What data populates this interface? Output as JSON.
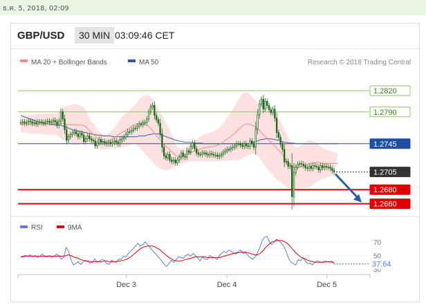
{
  "timestamp": "ธ.ค. 5, 2018, 02:09",
  "header": {
    "pair": "GBP/USD",
    "timeframe": "30 MIN",
    "time": "03:09:46 CET"
  },
  "legend": {
    "ma20": "MA 20 + Bollinger Bands",
    "ma50": "MA 50",
    "credit": "Research © 2018 Trading Central"
  },
  "rsi_legend": {
    "rsi": "RSI",
    "ma9": "9MA"
  },
  "colors": {
    "ma20": "#f28b82",
    "ma50": "#2f5b9e",
    "band": "#fde0e0",
    "support": "#e00000",
    "resistance": "#8dc26f",
    "pivot": "#1f4ea3",
    "candle": "#1a6b1a",
    "arrow": "#2a5da8"
  },
  "chart_data": [
    {
      "type": "candlestick",
      "title": "GBP/USD",
      "x_ticks": [
        "Dec 3",
        "Dec 4",
        "Dec 5"
      ],
      "ylim": [
        1.2645,
        1.2825
      ],
      "levels": [
        {
          "label": "1.2820",
          "value": 1.282,
          "kind": "resistance"
        },
        {
          "label": "1.2790",
          "value": 1.279,
          "kind": "resistance"
        },
        {
          "label": "1.2745",
          "value": 1.2745,
          "kind": "pivot"
        },
        {
          "label": "1.2705",
          "value": 1.2705,
          "kind": "last"
        },
        {
          "label": "1.2680",
          "value": 1.268,
          "kind": "support"
        },
        {
          "label": "1.2660",
          "value": 1.266,
          "kind": "support"
        }
      ],
      "close": [
        1.2775,
        1.2776,
        1.2774,
        1.2775,
        1.2777,
        1.2776,
        1.2774,
        1.2775,
        1.2773,
        1.2776,
        1.2776,
        1.2775,
        1.2774,
        1.2776,
        1.2777,
        1.2775,
        1.2776,
        1.2778,
        1.2776,
        1.2771,
        1.2777,
        1.279,
        1.278,
        1.2765,
        1.275,
        1.2755,
        1.2758,
        1.276,
        1.2762,
        1.2759,
        1.2755,
        1.276,
        1.2757,
        1.2748,
        1.2752,
        1.2756,
        1.2752,
        1.275,
        1.2749,
        1.2742,
        1.2746,
        1.2751,
        1.2747,
        1.2748,
        1.2746,
        1.2745,
        1.2747,
        1.2745,
        1.2747,
        1.2749,
        1.2747,
        1.2745,
        1.275,
        1.2752,
        1.2754,
        1.2758,
        1.2762,
        1.2762,
        1.2764,
        1.2767,
        1.2767,
        1.277,
        1.2773,
        1.2772,
        1.2775,
        1.2775,
        1.278,
        1.279,
        1.2797,
        1.2799,
        1.2785,
        1.2779,
        1.2774,
        1.2759,
        1.274,
        1.2728,
        1.2725,
        1.273,
        1.2722,
        1.272,
        1.2722,
        1.2718,
        1.2722,
        1.2726,
        1.2732,
        1.2727,
        1.2726,
        1.2735,
        1.2733,
        1.2741,
        1.2746,
        1.2738,
        1.2732,
        1.273,
        1.273,
        1.2732,
        1.2732,
        1.273,
        1.2729,
        1.2731,
        1.273,
        1.2729,
        1.2729,
        1.2727,
        1.2728,
        1.273,
        1.2733,
        1.2735,
        1.2737,
        1.2737,
        1.2739,
        1.274,
        1.2742,
        1.2745,
        1.2745,
        1.2743,
        1.2741,
        1.2745,
        1.2742,
        1.2741,
        1.2749,
        1.2745,
        1.274,
        1.2766,
        1.2786,
        1.2801,
        1.2808,
        1.2794,
        1.2805,
        1.2799,
        1.2793,
        1.2789,
        1.2794,
        1.2781,
        1.2761,
        1.2754,
        1.2744,
        1.2737,
        1.2719,
        1.272,
        1.2713,
        1.2714,
        1.267,
        1.2704,
        1.2712,
        1.2716,
        1.2717,
        1.2716,
        1.2714,
        1.2711,
        1.271,
        1.2713,
        1.271,
        1.2714,
        1.2713,
        1.2712,
        1.2708,
        1.2714,
        1.2711,
        1.2713,
        1.2712,
        1.2712,
        1.271,
        1.2707,
        1.2705
      ],
      "ma20_upper": [
        1.2783,
        1.2784,
        1.2785,
        1.2785,
        1.2785,
        1.2786,
        1.2786,
        1.2786,
        1.2787,
        1.2787,
        1.2787,
        1.2787,
        1.2788,
        1.2788,
        1.2788,
        1.2788,
        1.2788,
        1.2788,
        1.2788,
        1.2788,
        1.279,
        1.2794,
        1.2796,
        1.2797,
        1.2798,
        1.2799,
        1.28,
        1.28,
        1.2801,
        1.2801,
        1.28,
        1.2799,
        1.2798,
        1.2796,
        1.2793,
        1.2788,
        1.2781,
        1.2776,
        1.2774,
        1.277,
        1.2766,
        1.2762,
        1.276,
        1.2759,
        1.2758,
        1.2758,
        1.276,
        1.2762,
        1.2765,
        1.2768,
        1.2772,
        1.2776,
        1.278,
        1.2783,
        1.2785,
        1.2787,
        1.2789,
        1.2792,
        1.2795,
        1.2798,
        1.2801,
        1.2804,
        1.2807,
        1.281,
        1.2812,
        1.2813,
        1.2814,
        1.2813,
        1.2811,
        1.2808,
        1.2804,
        1.28,
        1.2795,
        1.279,
        1.2785,
        1.278,
        1.2775,
        1.277,
        1.2764,
        1.2758,
        1.2752,
        1.2745,
        1.274,
        1.2738,
        1.2737,
        1.2738,
        1.2739,
        1.2741,
        1.2743,
        1.2745,
        1.2747,
        1.2749,
        1.2751,
        1.2753,
        1.2755,
        1.2757,
        1.2758,
        1.2759,
        1.276,
        1.2761,
        1.2762,
        1.2763,
        1.2764,
        1.2766,
        1.2768,
        1.2771,
        1.2774,
        1.2778,
        1.2782,
        1.2786,
        1.279,
        1.2794,
        1.2798,
        1.2803,
        1.2808,
        1.2812,
        1.2816,
        1.2818,
        1.2818,
        1.2817,
        1.2815,
        1.2812,
        1.2809,
        1.2806,
        1.2804,
        1.2802,
        1.28,
        1.2798,
        1.2797,
        1.2795,
        1.2793,
        1.2791,
        1.2789,
        1.2786,
        1.2783,
        1.278,
        1.2776,
        1.2771,
        1.2765,
        1.2759,
        1.2754,
        1.2749,
        1.2745,
        1.2742,
        1.274,
        1.274,
        1.2741,
        1.2743,
        1.2745,
        1.2747,
        1.2749,
        1.275,
        1.275,
        1.2749,
        1.2748,
        1.2746,
        1.2744,
        1.2741,
        1.2739,
        1.2738,
        1.2737,
        1.2736,
        1.2735,
        1.2734,
        1.2733,
        1.2732,
        1.2731
      ],
      "ma20_lower": [
        1.2762,
        1.2761,
        1.2761,
        1.276,
        1.276,
        1.2759,
        1.2759,
        1.2759,
        1.2759,
        1.2759,
        1.2759,
        1.2759,
        1.2758,
        1.2758,
        1.2758,
        1.2758,
        1.2758,
        1.2758,
        1.2758,
        1.2757,
        1.2755,
        1.2753,
        1.2751,
        1.2749,
        1.2747,
        1.2745,
        1.2744,
        1.2743,
        1.2743,
        1.2743,
        1.2743,
        1.2744,
        1.2745,
        1.2745,
        1.2745,
        1.2745,
        1.2745,
        1.2744,
        1.2743,
        1.2741,
        1.2739,
        1.2738,
        1.2737,
        1.2737,
        1.2737,
        1.2738,
        1.2738,
        1.2738,
        1.2739,
        1.2739,
        1.2739,
        1.2739,
        1.2739,
        1.2739,
        1.274,
        1.2741,
        1.2742,
        1.2743,
        1.2744,
        1.2745,
        1.2744,
        1.2742,
        1.274,
        1.2737,
        1.2734,
        1.2731,
        1.2728,
        1.2725,
        1.2722,
        1.2719,
        1.2716,
        1.2713,
        1.2711,
        1.271,
        1.2709,
        1.2708,
        1.2708,
        1.2708,
        1.2709,
        1.271,
        1.2711,
        1.2713,
        1.2715,
        1.2716,
        1.2717,
        1.2718,
        1.2719,
        1.2719,
        1.272,
        1.272,
        1.272,
        1.272,
        1.272,
        1.272,
        1.272,
        1.272,
        1.272,
        1.272,
        1.272,
        1.272,
        1.272,
        1.272,
        1.272,
        1.272,
        1.272,
        1.272,
        1.2721,
        1.2721,
        1.2721,
        1.2721,
        1.2721,
        1.2721,
        1.2721,
        1.2722,
        1.2722,
        1.2723,
        1.2724,
        1.2726,
        1.2728,
        1.2729,
        1.273,
        1.2731,
        1.2731,
        1.273,
        1.2728,
        1.2725,
        1.2721,
        1.2717,
        1.2713,
        1.271,
        1.2706,
        1.2703,
        1.27,
        1.2697,
        1.2694,
        1.2692,
        1.269,
        1.2688,
        1.2686,
        1.2684,
        1.2683,
        1.2682,
        1.2681,
        1.2681,
        1.2681,
        1.2682,
        1.2682,
        1.2682,
        1.2682,
        1.2682,
        1.2683,
        1.2684,
        1.2685,
        1.2687,
        1.2689,
        1.2691,
        1.2693,
        1.2694,
        1.2695,
        1.2696,
        1.2697,
        1.2698,
        1.2699,
        1.27,
        1.2701,
        1.2702,
        1.2703
      ],
      "ma50": [
        1.2785,
        1.2784,
        1.2783,
        1.2782,
        1.2781,
        1.278,
        1.2779,
        1.2778,
        1.2777,
        1.2776,
        1.2775,
        1.2775,
        1.2774,
        1.2774,
        1.2773,
        1.2773,
        1.2772,
        1.2772,
        1.2771,
        1.2771,
        1.2771,
        1.2771,
        1.277,
        1.2769,
        1.2768,
        1.2767,
        1.2766,
        1.2765,
        1.2764,
        1.2764,
        1.2763,
        1.2762,
        1.2762,
        1.2761,
        1.2761,
        1.276,
        1.2759,
        1.2759,
        1.2758,
        1.2758,
        1.2757,
        1.2757,
        1.2757,
        1.2756,
        1.2756,
        1.2756,
        1.2756,
        1.2756,
        1.2755,
        1.2755,
        1.2755,
        1.2755,
        1.2755,
        1.2755,
        1.2755,
        1.2755,
        1.2755,
        1.2755,
        1.2755,
        1.2755,
        1.2755,
        1.2755,
        1.2756,
        1.2756,
        1.2756,
        1.2756,
        1.2757,
        1.2758,
        1.2758,
        1.2759,
        1.2759,
        1.2759,
        1.2759,
        1.2758,
        1.2757,
        1.2756,
        1.2755,
        1.2754,
        1.2753,
        1.2752,
        1.2751,
        1.275,
        1.2749,
        1.2749,
        1.2748,
        1.2748,
        1.2747,
        1.2747,
        1.2747,
        1.2747,
        1.2746,
        1.2746,
        1.2746,
        1.2746,
        1.2746,
        1.2746,
        1.2745,
        1.2745,
        1.2745,
        1.2745,
        1.2745,
        1.2745,
        1.2745,
        1.2745,
        1.2745,
        1.2745,
        1.2745,
        1.2745,
        1.2745,
        1.2745,
        1.2745,
        1.2745,
        1.2745,
        1.2745,
        1.2745,
        1.2745,
        1.2745,
        1.2745,
        1.2745,
        1.2745,
        1.2745,
        1.2746,
        1.2747,
        1.2748,
        1.2749,
        1.275,
        1.2751,
        1.2751,
        1.2752,
        1.2752,
        1.2752,
        1.2752,
        1.2751,
        1.2751,
        1.275,
        1.275,
        1.2749,
        1.2748,
        1.2747,
        1.2747,
        1.2746,
        1.2746,
        1.2746,
        1.2746,
        1.2745,
        1.2745,
        1.2745,
        1.2745,
        1.2745,
        1.2745,
        1.2745,
        1.2745,
        1.2745,
        1.2745,
        1.2745,
        1.2745,
        1.2745,
        1.2745,
        1.2745,
        1.2745,
        1.2745,
        1.2745,
        1.2745,
        1.2745,
        1.2745,
        1.2745,
        1.2745
      ]
    },
    {
      "type": "line",
      "title": "RSI",
      "x_ticks": [
        "Dec 3",
        "Dec 4",
        "Dec 5"
      ],
      "y_ticks": [
        30,
        50,
        70
      ],
      "ylim": [
        25,
        80
      ],
      "last_label": "37.64",
      "series": [
        {
          "name": "RSI",
          "values": [
            48,
            49,
            50,
            49,
            51,
            48,
            50,
            47,
            49,
            52,
            49,
            48,
            50,
            47,
            49,
            52,
            50,
            45,
            47,
            62,
            56,
            44,
            36,
            38,
            41,
            37,
            40,
            43,
            41,
            39,
            40,
            45,
            40,
            42,
            44,
            43,
            38,
            37,
            43,
            41,
            40,
            45,
            44,
            49,
            48,
            53,
            57,
            60,
            64,
            68,
            64,
            66,
            70,
            66,
            62,
            58,
            54,
            50,
            46,
            42,
            37,
            34,
            38,
            43,
            40,
            44,
            48,
            47,
            46,
            50,
            52,
            49,
            53,
            50,
            46,
            42,
            48,
            45,
            44,
            50,
            48,
            47,
            44,
            50,
            53,
            56,
            54,
            58,
            56,
            54,
            52,
            56,
            58,
            53,
            54,
            50,
            47,
            44,
            48,
            54,
            62,
            72,
            77,
            78,
            70,
            66,
            70,
            74,
            72,
            68,
            64,
            56,
            46,
            40,
            38,
            36,
            44,
            42,
            47,
            42,
            38,
            39,
            36,
            40,
            42,
            41,
            40,
            42,
            41,
            40,
            42,
            38
          ]
        },
        {
          "name": "9MA",
          "values": [
            48,
            48,
            49,
            49,
            49,
            49,
            49,
            49,
            49,
            49,
            49,
            49,
            49,
            49,
            49,
            49,
            49,
            49,
            49,
            50,
            51,
            50,
            48,
            47,
            46,
            44,
            43,
            42,
            42,
            41,
            41,
            41,
            41,
            41,
            41,
            42,
            42,
            41,
            41,
            41,
            41,
            42,
            42,
            43,
            44,
            46,
            48,
            51,
            54,
            57,
            60,
            62,
            63,
            64,
            64,
            64,
            63,
            61,
            59,
            56,
            53,
            50,
            47,
            45,
            43,
            42,
            42,
            42,
            43,
            44,
            45,
            46,
            47,
            48,
            48,
            48,
            48,
            48,
            47,
            47,
            47,
            47,
            47,
            47,
            48,
            49,
            50,
            51,
            52,
            53,
            54,
            54,
            55,
            55,
            55,
            54,
            53,
            52,
            51,
            51,
            53,
            56,
            60,
            64,
            67,
            70,
            71,
            72,
            72,
            72,
            71,
            69,
            66,
            62,
            58,
            54,
            51,
            48,
            46,
            45,
            43,
            42,
            41,
            40,
            40,
            40,
            40,
            40,
            41,
            41,
            40,
            40
          ]
        }
      ]
    }
  ]
}
